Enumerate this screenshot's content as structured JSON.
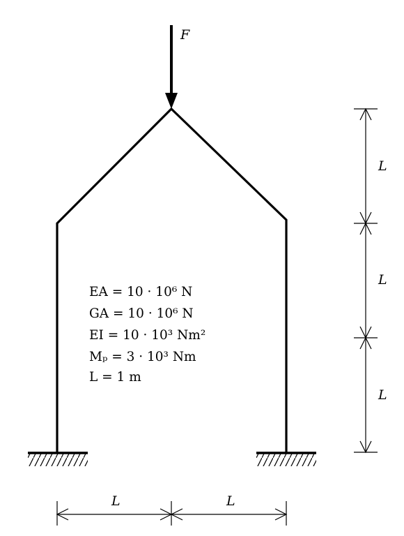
{
  "load": {
    "label": "F"
  },
  "dimensions": {
    "vertical_labels": [
      "L",
      "L",
      "L"
    ],
    "horizontal_labels": [
      "L",
      "L"
    ]
  },
  "properties": [
    {
      "id": "ea",
      "text": "EA = 10 · 10⁶ N"
    },
    {
      "id": "ga",
      "text": "GA = 10 · 10⁶ N"
    },
    {
      "id": "ei",
      "text": "EI = 10 · 10³ Nm²"
    },
    {
      "id": "mp",
      "text": "Mₚ = 3 · 10³ Nm"
    },
    {
      "id": "l",
      "text": "L = 1 m"
    }
  ]
}
